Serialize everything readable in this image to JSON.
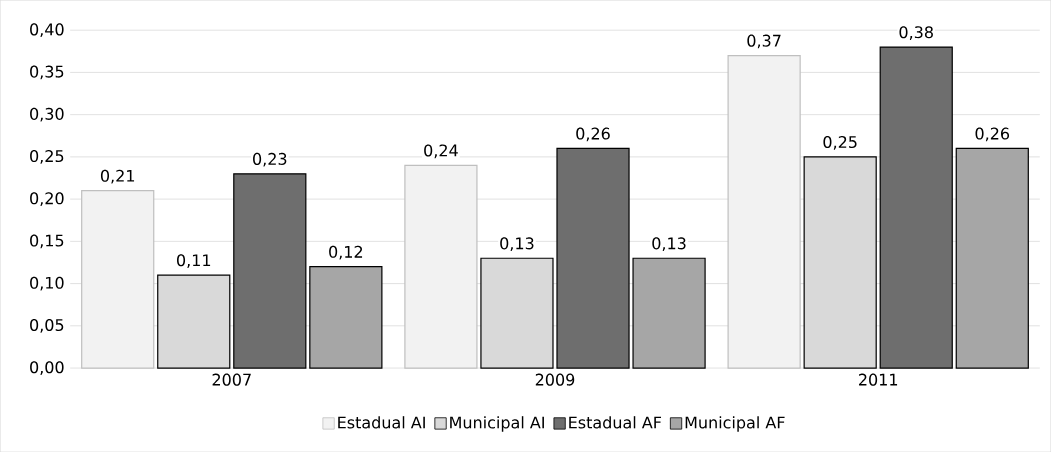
{
  "chart_data": {
    "type": "bar",
    "categories": [
      "2007",
      "2009",
      "2011"
    ],
    "series": [
      {
        "name": "Estadual AI",
        "color": "#f2f2f2",
        "values": [
          0.21,
          0.24,
          0.37
        ],
        "value_labels": [
          "0,21",
          "0,24",
          "0,37"
        ]
      },
      {
        "name": "Municipal AI",
        "color": "#d9d9d9",
        "values": [
          0.11,
          0.13,
          0.25
        ],
        "value_labels": [
          "0,11",
          "0,13",
          "0,25"
        ]
      },
      {
        "name": "Estadual AF",
        "color": "#6e6e6e",
        "values": [
          0.23,
          0.26,
          0.38
        ],
        "value_labels": [
          "0,23",
          "0,26",
          "0,38"
        ]
      },
      {
        "name": "Municipal AF",
        "color": "#a6a6a6",
        "values": [
          0.12,
          0.13,
          0.26
        ],
        "value_labels": [
          "0,12",
          "0,13",
          "0,26"
        ]
      }
    ],
    "ylim": [
      0,
      0.4
    ],
    "yticks": [
      {
        "value": 0,
        "label": "0,00"
      },
      {
        "value": 0.05,
        "label": "0,05"
      },
      {
        "value": 0.1,
        "label": "0,10"
      },
      {
        "value": 0.15,
        "label": "0,15"
      },
      {
        "value": 0.2,
        "label": "0,20"
      },
      {
        "value": 0.25,
        "label": "0,25"
      },
      {
        "value": 0.3,
        "label": "0,30"
      },
      {
        "value": 0.35,
        "label": "0,35"
      },
      {
        "value": 0.4,
        "label": "0,40"
      }
    ],
    "grid": "y",
    "legend": "bottom"
  }
}
